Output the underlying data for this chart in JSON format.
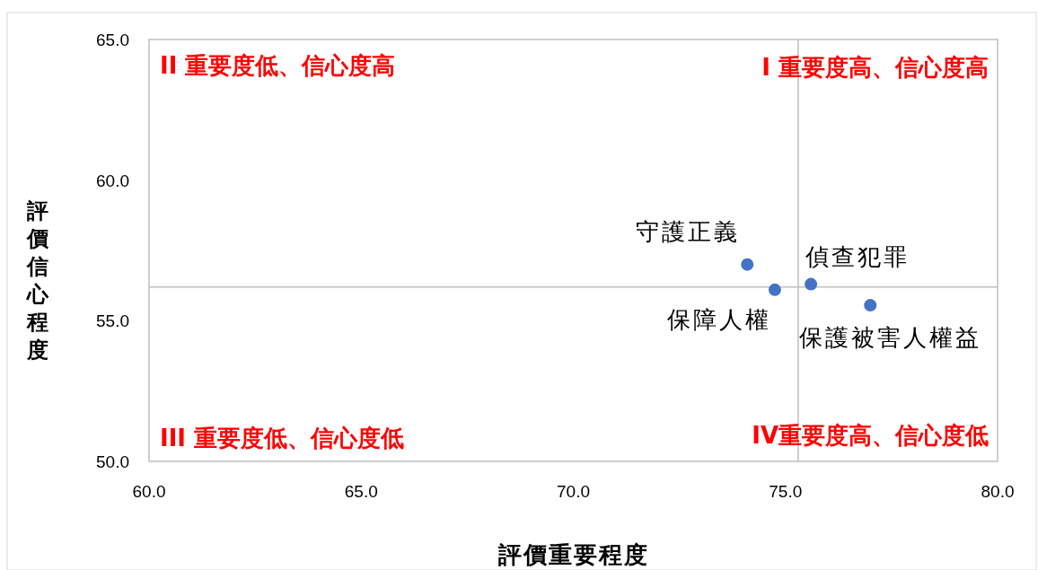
{
  "chart_data": {
    "type": "scatter",
    "xlabel": "評價重要程度",
    "ylabel": "評價信心程度",
    "series": [
      {
        "name": "守護正義",
        "color": "#4472c4",
        "x": [
          74.1
        ],
        "values": [
          57.0
        ]
      },
      {
        "name": "保障人權",
        "color": "#4472c4",
        "x": [
          74.75
        ],
        "values": [
          56.1
        ]
      },
      {
        "name": "偵查犯罪",
        "color": "#4472c4",
        "x": [
          75.6
        ],
        "values": [
          56.3
        ]
      },
      {
        "name": "保護被害人權益",
        "color": "#4472c4",
        "x": [
          77.0
        ],
        "values": [
          55.55
        ]
      }
    ],
    "marker": "circle",
    "grid": false,
    "xlim": [
      60,
      80
    ],
    "ylim": [
      50,
      65
    ],
    "xticks": [
      {
        "value": 60,
        "label": "60.0"
      },
      {
        "value": 65,
        "label": "65.0"
      },
      {
        "value": 70,
        "label": "70.0"
      },
      {
        "value": 75,
        "label": "75.0"
      },
      {
        "value": 80,
        "label": "80.0"
      }
    ],
    "yticks": [
      {
        "value": 50,
        "label": "50.0"
      },
      {
        "value": 55,
        "label": "55.0"
      },
      {
        "value": 60,
        "label": "60.0"
      },
      {
        "value": 65,
        "label": "65.0"
      }
    ],
    "ref_lines": [
      {
        "axis": "x",
        "value": 75.3,
        "color": "#bfbfbf"
      },
      {
        "axis": "y",
        "value": 56.2,
        "color": "#bfbfbf"
      }
    ],
    "annotations": [
      "II 重要度低、信心度高",
      "I 重要度高、信心度高",
      "III 重要度低、信心度低",
      "IV重要度高、信心度低"
    ]
  }
}
